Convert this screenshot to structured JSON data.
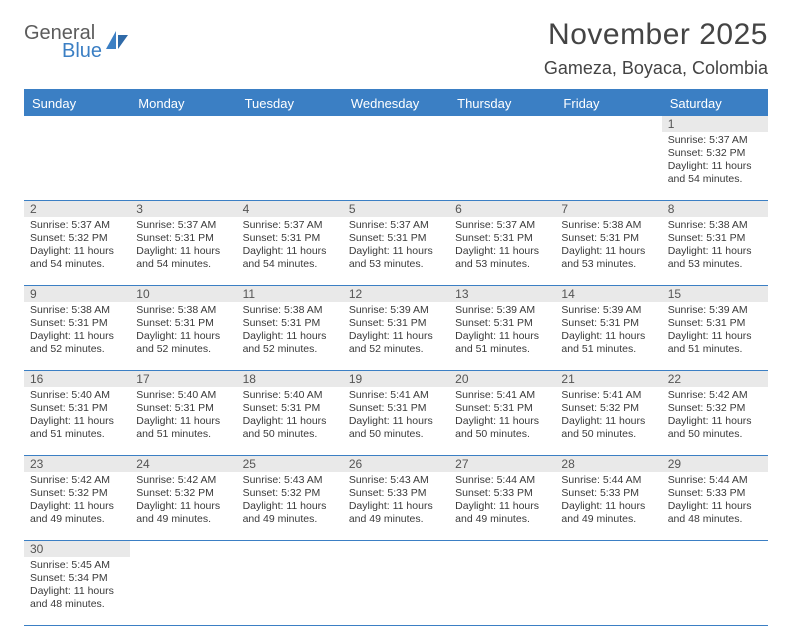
{
  "logo": {
    "word1": "General",
    "word2": "Blue"
  },
  "title": "November 2025",
  "location": "Gameza, Boyaca, Colombia",
  "colors": {
    "accent": "#3b7fc4",
    "grayBand": "#e9e9e9",
    "text": "#3a3a3a",
    "titleText": "#444444"
  },
  "dayNames": [
    "Sunday",
    "Monday",
    "Tuesday",
    "Wednesday",
    "Thursday",
    "Friday",
    "Saturday"
  ],
  "weeks": [
    {
      "nums": [
        "",
        "",
        "",
        "",
        "",
        "",
        "1"
      ],
      "cells": [
        null,
        null,
        null,
        null,
        null,
        null,
        {
          "sr": "Sunrise: 5:37 AM",
          "ss": "Sunset: 5:32 PM",
          "dl1": "Daylight: 11 hours",
          "dl2": "and 54 minutes."
        }
      ]
    },
    {
      "nums": [
        "2",
        "3",
        "4",
        "5",
        "6",
        "7",
        "8"
      ],
      "cells": [
        {
          "sr": "Sunrise: 5:37 AM",
          "ss": "Sunset: 5:32 PM",
          "dl1": "Daylight: 11 hours",
          "dl2": "and 54 minutes."
        },
        {
          "sr": "Sunrise: 5:37 AM",
          "ss": "Sunset: 5:31 PM",
          "dl1": "Daylight: 11 hours",
          "dl2": "and 54 minutes."
        },
        {
          "sr": "Sunrise: 5:37 AM",
          "ss": "Sunset: 5:31 PM",
          "dl1": "Daylight: 11 hours",
          "dl2": "and 54 minutes."
        },
        {
          "sr": "Sunrise: 5:37 AM",
          "ss": "Sunset: 5:31 PM",
          "dl1": "Daylight: 11 hours",
          "dl2": "and 53 minutes."
        },
        {
          "sr": "Sunrise: 5:37 AM",
          "ss": "Sunset: 5:31 PM",
          "dl1": "Daylight: 11 hours",
          "dl2": "and 53 minutes."
        },
        {
          "sr": "Sunrise: 5:38 AM",
          "ss": "Sunset: 5:31 PM",
          "dl1": "Daylight: 11 hours",
          "dl2": "and 53 minutes."
        },
        {
          "sr": "Sunrise: 5:38 AM",
          "ss": "Sunset: 5:31 PM",
          "dl1": "Daylight: 11 hours",
          "dl2": "and 53 minutes."
        }
      ]
    },
    {
      "nums": [
        "9",
        "10",
        "11",
        "12",
        "13",
        "14",
        "15"
      ],
      "cells": [
        {
          "sr": "Sunrise: 5:38 AM",
          "ss": "Sunset: 5:31 PM",
          "dl1": "Daylight: 11 hours",
          "dl2": "and 52 minutes."
        },
        {
          "sr": "Sunrise: 5:38 AM",
          "ss": "Sunset: 5:31 PM",
          "dl1": "Daylight: 11 hours",
          "dl2": "and 52 minutes."
        },
        {
          "sr": "Sunrise: 5:38 AM",
          "ss": "Sunset: 5:31 PM",
          "dl1": "Daylight: 11 hours",
          "dl2": "and 52 minutes."
        },
        {
          "sr": "Sunrise: 5:39 AM",
          "ss": "Sunset: 5:31 PM",
          "dl1": "Daylight: 11 hours",
          "dl2": "and 52 minutes."
        },
        {
          "sr": "Sunrise: 5:39 AM",
          "ss": "Sunset: 5:31 PM",
          "dl1": "Daylight: 11 hours",
          "dl2": "and 51 minutes."
        },
        {
          "sr": "Sunrise: 5:39 AM",
          "ss": "Sunset: 5:31 PM",
          "dl1": "Daylight: 11 hours",
          "dl2": "and 51 minutes."
        },
        {
          "sr": "Sunrise: 5:39 AM",
          "ss": "Sunset: 5:31 PM",
          "dl1": "Daylight: 11 hours",
          "dl2": "and 51 minutes."
        }
      ]
    },
    {
      "nums": [
        "16",
        "17",
        "18",
        "19",
        "20",
        "21",
        "22"
      ],
      "cells": [
        {
          "sr": "Sunrise: 5:40 AM",
          "ss": "Sunset: 5:31 PM",
          "dl1": "Daylight: 11 hours",
          "dl2": "and 51 minutes."
        },
        {
          "sr": "Sunrise: 5:40 AM",
          "ss": "Sunset: 5:31 PM",
          "dl1": "Daylight: 11 hours",
          "dl2": "and 51 minutes."
        },
        {
          "sr": "Sunrise: 5:40 AM",
          "ss": "Sunset: 5:31 PM",
          "dl1": "Daylight: 11 hours",
          "dl2": "and 50 minutes."
        },
        {
          "sr": "Sunrise: 5:41 AM",
          "ss": "Sunset: 5:31 PM",
          "dl1": "Daylight: 11 hours",
          "dl2": "and 50 minutes."
        },
        {
          "sr": "Sunrise: 5:41 AM",
          "ss": "Sunset: 5:31 PM",
          "dl1": "Daylight: 11 hours",
          "dl2": "and 50 minutes."
        },
        {
          "sr": "Sunrise: 5:41 AM",
          "ss": "Sunset: 5:32 PM",
          "dl1": "Daylight: 11 hours",
          "dl2": "and 50 minutes."
        },
        {
          "sr": "Sunrise: 5:42 AM",
          "ss": "Sunset: 5:32 PM",
          "dl1": "Daylight: 11 hours",
          "dl2": "and 50 minutes."
        }
      ]
    },
    {
      "nums": [
        "23",
        "24",
        "25",
        "26",
        "27",
        "28",
        "29"
      ],
      "cells": [
        {
          "sr": "Sunrise: 5:42 AM",
          "ss": "Sunset: 5:32 PM",
          "dl1": "Daylight: 11 hours",
          "dl2": "and 49 minutes."
        },
        {
          "sr": "Sunrise: 5:42 AM",
          "ss": "Sunset: 5:32 PM",
          "dl1": "Daylight: 11 hours",
          "dl2": "and 49 minutes."
        },
        {
          "sr": "Sunrise: 5:43 AM",
          "ss": "Sunset: 5:32 PM",
          "dl1": "Daylight: 11 hours",
          "dl2": "and 49 minutes."
        },
        {
          "sr": "Sunrise: 5:43 AM",
          "ss": "Sunset: 5:33 PM",
          "dl1": "Daylight: 11 hours",
          "dl2": "and 49 minutes."
        },
        {
          "sr": "Sunrise: 5:44 AM",
          "ss": "Sunset: 5:33 PM",
          "dl1": "Daylight: 11 hours",
          "dl2": "and 49 minutes."
        },
        {
          "sr": "Sunrise: 5:44 AM",
          "ss": "Sunset: 5:33 PM",
          "dl1": "Daylight: 11 hours",
          "dl2": "and 49 minutes."
        },
        {
          "sr": "Sunrise: 5:44 AM",
          "ss": "Sunset: 5:33 PM",
          "dl1": "Daylight: 11 hours",
          "dl2": "and 48 minutes."
        }
      ]
    },
    {
      "nums": [
        "30",
        "",
        "",
        "",
        "",
        "",
        ""
      ],
      "cells": [
        {
          "sr": "Sunrise: 5:45 AM",
          "ss": "Sunset: 5:34 PM",
          "dl1": "Daylight: 11 hours",
          "dl2": "and 48 minutes."
        },
        null,
        null,
        null,
        null,
        null,
        null
      ]
    }
  ]
}
